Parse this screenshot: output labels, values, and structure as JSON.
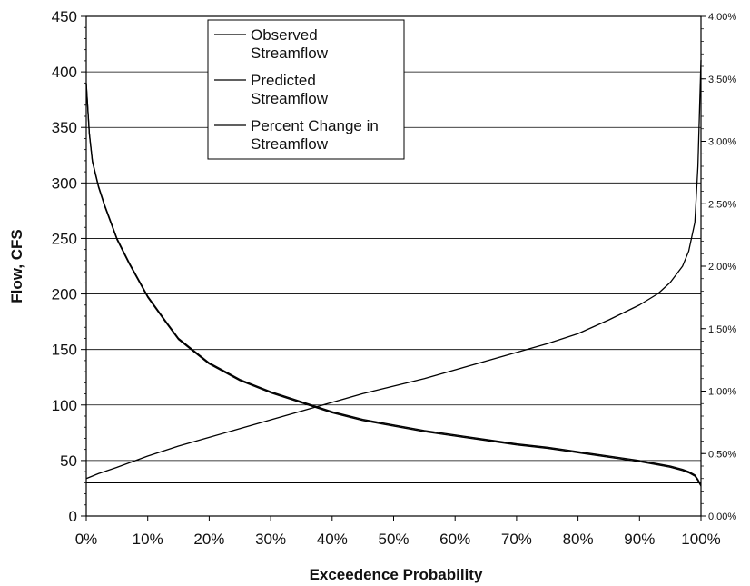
{
  "chart_data": {
    "type": "line",
    "xlabel": "Exceedence Probability",
    "ylabel": "Flow, CFS",
    "xlim": [
      0,
      100
    ],
    "ylim": [
      0,
      450
    ],
    "y2lim": [
      0,
      4
    ],
    "x_ticks": [
      "0%",
      "10%",
      "20%",
      "30%",
      "40%",
      "50%",
      "60%",
      "70%",
      "80%",
      "90%",
      "100%"
    ],
    "y_ticks": [
      "0",
      "50",
      "100",
      "150",
      "200",
      "250",
      "300",
      "350",
      "400",
      "450"
    ],
    "y2_ticks": [
      "0.00%",
      "0.50%",
      "1.00%",
      "1.50%",
      "2.00%",
      "2.50%",
      "3.00%",
      "3.50%",
      "4.00%"
    ],
    "grid": "horizontal",
    "legend_position": "top-center",
    "series": [
      {
        "name": "Observed Streamflow",
        "axis": "left",
        "x": [
          0,
          0.5,
          1,
          2,
          3,
          5,
          7,
          10,
          13,
          15,
          20,
          25,
          30,
          35,
          40,
          45,
          50,
          55,
          60,
          65,
          70,
          75,
          80,
          85,
          90,
          93,
          95,
          97,
          98,
          99,
          99.5,
          100
        ],
        "y": [
          390,
          345,
          320,
          297,
          280,
          250,
          228,
          198,
          175,
          160,
          138,
          123,
          112,
          103,
          94,
          87,
          82,
          77,
          73,
          69,
          65,
          62,
          58,
          54,
          50,
          47,
          45,
          42,
          40,
          37,
          33,
          28
        ]
      },
      {
        "name": "Predicted Streamflow",
        "axis": "left",
        "x": [
          0,
          0.5,
          1,
          2,
          3,
          5,
          7,
          10,
          13,
          15,
          20,
          25,
          30,
          35,
          40,
          45,
          50,
          55,
          60,
          65,
          70,
          75,
          80,
          85,
          90,
          93,
          95,
          97,
          98,
          99,
          99.5,
          100
        ],
        "y": [
          389,
          344,
          319,
          296,
          279,
          249,
          227,
          197,
          174,
          159,
          137,
          122,
          111,
          102,
          93,
          86,
          81,
          76,
          72,
          68,
          64,
          61,
          57,
          53,
          49,
          46,
          44,
          41,
          39,
          36,
          32,
          27
        ]
      },
      {
        "name": "Percent Change in Streamflow",
        "axis": "right",
        "x": [
          0,
          2,
          5,
          10,
          15,
          20,
          25,
          30,
          35,
          40,
          45,
          50,
          55,
          60,
          65,
          70,
          75,
          80,
          85,
          90,
          93,
          95,
          97,
          98,
          99,
          99.5,
          100
        ],
        "y": [
          0.3,
          0.34,
          0.39,
          0.48,
          0.56,
          0.63,
          0.7,
          0.77,
          0.84,
          0.91,
          0.98,
          1.04,
          1.1,
          1.17,
          1.24,
          1.31,
          1.38,
          1.46,
          1.57,
          1.69,
          1.78,
          1.87,
          2.0,
          2.12,
          2.35,
          2.8,
          3.65
        ]
      }
    ]
  }
}
